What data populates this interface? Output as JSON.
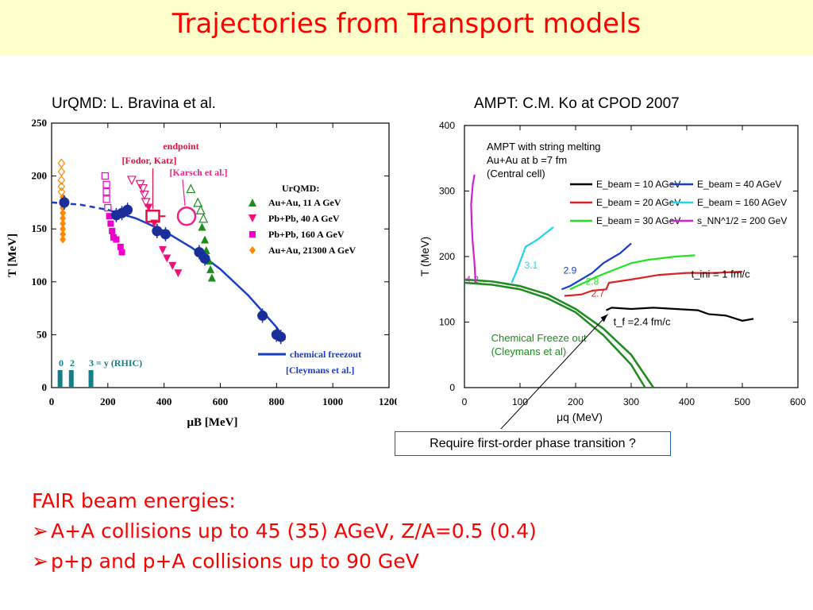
{
  "slide": {
    "title": "Trajectories  from Transport models",
    "left_caption": "UrQMD: L. Bravina et al.",
    "right_caption": "AMPT: C.M. Ko at CPOD 2007",
    "callout": "Require first-order phase transition ?",
    "fair_heading": "FAIR beam energies:",
    "bullets": [
      "A+A collisions  up to 45 (35) AGeV, Z/A=0.5 (0.4)",
      "p+p and p+A  collisions  up to 90 GeV"
    ],
    "bullet_marker": "arrow-bullet-icon"
  },
  "chart_data": [
    {
      "type": "scatter",
      "title": "",
      "xlabel": "μB [MeV]",
      "ylabel": "T [MeV]",
      "xlim": [
        0,
        1200
      ],
      "ylim": [
        0,
        250
      ],
      "x_ticks": [
        "0",
        "200",
        "400",
        "600",
        "800",
        "1000",
        "1200"
      ],
      "y_ticks": [
        "0",
        "50",
        "100",
        "150",
        "200",
        "250"
      ],
      "legend_title": "UrQMD:",
      "series": [
        {
          "name": "Au+Au, 11 A GeV",
          "marker": "triangle-up",
          "color": "#1a8f1a",
          "points": [
            [
              495,
              188
            ],
            [
              520,
              175
            ],
            [
              530,
              168
            ],
            [
              540,
              160
            ],
            [
              535,
              152
            ],
            [
              545,
              140
            ],
            [
              550,
              130
            ],
            [
              560,
              120
            ],
            [
              565,
              112
            ],
            [
              570,
              104
            ]
          ]
        },
        {
          "name": "Pb+Pb, 40 A GeV",
          "marker": "triangle-down",
          "color": "#ee1177",
          "points": [
            [
              285,
              196
            ],
            [
              315,
              192
            ],
            [
              325,
              188
            ],
            [
              330,
              182
            ],
            [
              335,
              175
            ],
            [
              345,
              170
            ],
            [
              365,
              155
            ],
            [
              375,
              148
            ],
            [
              395,
              130
            ],
            [
              410,
              122
            ],
            [
              430,
              115
            ],
            [
              450,
              108
            ]
          ]
        },
        {
          "name": "Pb+Pb, 160 A GeV",
          "marker": "square",
          "color": "#ee00cc",
          "points": [
            [
              190,
              200
            ],
            [
              195,
              192
            ],
            [
              195,
              185
            ],
            [
              195,
              178
            ],
            [
              200,
              170
            ],
            [
              205,
              162
            ],
            [
              210,
              155
            ],
            [
              215,
              148
            ],
            [
              220,
              142
            ],
            [
              230,
              140
            ],
            [
              245,
              133
            ],
            [
              250,
              128
            ]
          ]
        },
        {
          "name": "Au+Au, 21300 A GeV",
          "marker": "diamond",
          "color": "#ff8800",
          "points": [
            [
              35,
              212
            ],
            [
              35,
              204
            ],
            [
              35,
              196
            ],
            [
              35,
              190
            ],
            [
              35,
              185
            ],
            [
              40,
              180
            ],
            [
              40,
              170
            ],
            [
              40,
              165
            ],
            [
              40,
              160
            ],
            [
              40,
              155
            ],
            [
              40,
              150
            ],
            [
              40,
              145
            ],
            [
              40,
              140
            ]
          ]
        }
      ],
      "urqmd_points": [
        [
          45,
          175
        ],
        [
          230,
          163
        ],
        [
          250,
          165
        ],
        [
          270,
          168
        ],
        [
          375,
          148
        ],
        [
          405,
          145
        ],
        [
          525,
          128
        ],
        [
          545,
          122
        ],
        [
          750,
          68
        ],
        [
          800,
          50
        ],
        [
          815,
          48
        ]
      ],
      "freezeout_curve": [
        [
          0,
          175
        ],
        [
          100,
          173
        ],
        [
          200,
          168
        ],
        [
          300,
          160
        ],
        [
          400,
          148
        ],
        [
          500,
          132
        ],
        [
          600,
          112
        ],
        [
          700,
          87
        ],
        [
          800,
          57
        ],
        [
          830,
          45
        ]
      ],
      "freezeout_label": "chemical freezout",
      "freezeout_source": "[Cleymans et al.]",
      "endpoint_label": "endpoint",
      "endpoint_fodor": "[Fodor, Katz]",
      "endpoint_karsch": "[Karsch et al.]",
      "endpoint_fodor_pos": [
        360,
        162
      ],
      "endpoint_karsch_pos": [
        480,
        162
      ],
      "rapidity_labels": [
        "0",
        "2",
        "3 = y  (RHIC)"
      ],
      "rapidity_bars": [
        30,
        70,
        140
      ]
    },
    {
      "type": "line",
      "title": "",
      "annotation": [
        "AMPT with string melting",
        "Au+Au at b =7 fm",
        "(Central cell)"
      ],
      "xlabel": "μq (MeV)",
      "ylabel": "T (MeV)",
      "xlim": [
        0,
        600
      ],
      "ylim": [
        0,
        400
      ],
      "x_ticks": [
        "0",
        "100",
        "200",
        "300",
        "400",
        "500",
        "600"
      ],
      "y_ticks": [
        "0",
        "100",
        "200",
        "300",
        "400"
      ],
      "legend": [
        {
          "label": "E_beam = 10 AGeV",
          "color": "#000000"
        },
        {
          "label": "E_beam = 40 AGeV",
          "color": "#1a3ec7"
        },
        {
          "label": "E_beam = 20 AGeV",
          "color": "#e02020"
        },
        {
          "label": "E_beam = 160 AGeV",
          "color": "#22d6e8"
        },
        {
          "label": "E_beam = 30 AGeV",
          "color": "#22e322"
        },
        {
          "label": "s_NN^1/2 = 200 GeV",
          "color": "#d020d0"
        }
      ],
      "series": [
        {
          "name": "E_beam = 10 AGeV",
          "color": "#000000",
          "label_value": "",
          "points": [
            [
              255,
              118
            ],
            [
              265,
              122
            ],
            [
              300,
              120
            ],
            [
              340,
              122
            ],
            [
              380,
              120
            ],
            [
              420,
              118
            ],
            [
              440,
              112
            ],
            [
              470,
              110
            ],
            [
              500,
              102
            ],
            [
              520,
              105
            ]
          ]
        },
        {
          "name": "E_beam = 20 AGeV",
          "color": "#e02020",
          "label_value": "2.7",
          "points": [
            [
              180,
              140
            ],
            [
              210,
              142
            ],
            [
              230,
              148
            ],
            [
              255,
              150
            ],
            [
              260,
              160
            ],
            [
              300,
              165
            ],
            [
              350,
              172
            ],
            [
              400,
              175
            ],
            [
              450,
              175
            ],
            [
              500,
              177
            ]
          ]
        },
        {
          "name": "E_beam = 30 AGeV",
          "color": "#22e322",
          "label_value": "2.8",
          "points": [
            [
              190,
              150
            ],
            [
              215,
              160
            ],
            [
              240,
              170
            ],
            [
              270,
              180
            ],
            [
              300,
              190
            ],
            [
              330,
              195
            ],
            [
              380,
              200
            ],
            [
              415,
              202
            ]
          ]
        },
        {
          "name": "E_beam = 40 AGeV",
          "color": "#1a3ec7",
          "label_value": "2.9",
          "points": [
            [
              175,
              150
            ],
            [
              190,
              155
            ],
            [
              210,
              165
            ],
            [
              230,
              175
            ],
            [
              250,
              190
            ],
            [
              280,
              205
            ],
            [
              300,
              220
            ]
          ]
        },
        {
          "name": "E_beam = 160 AGeV",
          "color": "#22d6e8",
          "label_value": "3.1",
          "points": [
            [
              85,
              160
            ],
            [
              95,
              180
            ],
            [
              110,
              215
            ],
            [
              130,
              225
            ],
            [
              145,
              235
            ],
            [
              160,
              245
            ]
          ]
        },
        {
          "name": "s_NN^1/2 = 200 GeV",
          "color": "#d020d0",
          "label_value": "4.2",
          "points": [
            [
              20,
              160
            ],
            [
              18,
              190
            ],
            [
              15,
              220
            ],
            [
              13,
              250
            ],
            [
              12,
              280
            ],
            [
              15,
              310
            ],
            [
              18,
              325
            ]
          ]
        }
      ],
      "cleymans_curves": [
        [
          [
            0,
            165
          ],
          [
            50,
            162
          ],
          [
            100,
            155
          ],
          [
            150,
            142
          ],
          [
            200,
            120
          ],
          [
            250,
            90
          ],
          [
            300,
            50
          ],
          [
            340,
            0
          ]
        ],
        [
          [
            0,
            160
          ],
          [
            50,
            157
          ],
          [
            100,
            150
          ],
          [
            150,
            136
          ],
          [
            200,
            115
          ],
          [
            250,
            80
          ],
          [
            300,
            35
          ],
          [
            325,
            0
          ]
        ]
      ],
      "labels": {
        "tini": "t_ini = 1 fm/c",
        "tf": "t_f =2.4 fm/c",
        "freeze_out": [
          "Chemical Freeze out",
          "(Cleymans et al)"
        ]
      }
    }
  ]
}
